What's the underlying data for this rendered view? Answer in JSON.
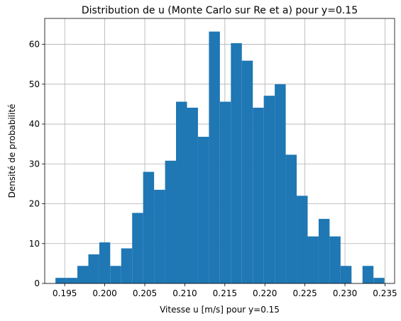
{
  "chart_data": {
    "type": "bar",
    "title": "Distribution de u (Monte Carlo sur Re et a) pour y=0.15",
    "xlabel": "Vitesse u [m/s] pour y=0.15",
    "ylabel": "Densité de probabilité",
    "xlim": [
      0.1925,
      0.2362
    ],
    "ylim": [
      0,
      66.5
    ],
    "grid": true,
    "bar_color": "#1f77b4",
    "grid_color": "#b0b0b0",
    "xticks": [
      0.195,
      0.2,
      0.205,
      0.21,
      0.215,
      0.22,
      0.225,
      0.23,
      0.235
    ],
    "xtick_labels": [
      "0.195",
      "0.200",
      "0.205",
      "0.210",
      "0.215",
      "0.220",
      "0.225",
      "0.230",
      "0.235"
    ],
    "yticks": [
      0,
      10,
      20,
      30,
      40,
      50,
      60
    ],
    "ytick_labels": [
      "0",
      "10",
      "20",
      "30",
      "40",
      "50",
      "60"
    ],
    "bins": [
      {
        "x0": 0.19384,
        "x1": 0.19521,
        "value": 1.4
      },
      {
        "x0": 0.19521,
        "x1": 0.19658,
        "value": 1.4
      },
      {
        "x0": 0.19658,
        "x1": 0.19795,
        "value": 4.4
      },
      {
        "x0": 0.19795,
        "x1": 0.19932,
        "value": 7.3
      },
      {
        "x0": 0.19932,
        "x1": 0.20068,
        "value": 10.3
      },
      {
        "x0": 0.20068,
        "x1": 0.20205,
        "value": 4.4
      },
      {
        "x0": 0.20205,
        "x1": 0.20342,
        "value": 8.8
      },
      {
        "x0": 0.20342,
        "x1": 0.20479,
        "value": 17.7
      },
      {
        "x0": 0.20479,
        "x1": 0.20616,
        "value": 28.0
      },
      {
        "x0": 0.20616,
        "x1": 0.20753,
        "value": 23.5
      },
      {
        "x0": 0.20753,
        "x1": 0.2089,
        "value": 30.8
      },
      {
        "x0": 0.2089,
        "x1": 0.21027,
        "value": 45.6
      },
      {
        "x0": 0.21027,
        "x1": 0.21164,
        "value": 44.1
      },
      {
        "x0": 0.21164,
        "x1": 0.21301,
        "value": 36.8
      },
      {
        "x0": 0.21301,
        "x1": 0.21438,
        "value": 63.2
      },
      {
        "x0": 0.21438,
        "x1": 0.21575,
        "value": 45.6
      },
      {
        "x0": 0.21575,
        "x1": 0.21712,
        "value": 60.3
      },
      {
        "x0": 0.21712,
        "x1": 0.21849,
        "value": 55.9
      },
      {
        "x0": 0.21849,
        "x1": 0.21986,
        "value": 44.1
      },
      {
        "x0": 0.21986,
        "x1": 0.22123,
        "value": 47.1
      },
      {
        "x0": 0.22123,
        "x1": 0.2226,
        "value": 50.0
      },
      {
        "x0": 0.2226,
        "x1": 0.22397,
        "value": 32.3
      },
      {
        "x0": 0.22397,
        "x1": 0.22534,
        "value": 22.0
      },
      {
        "x0": 0.22534,
        "x1": 0.22671,
        "value": 11.8
      },
      {
        "x0": 0.22671,
        "x1": 0.22808,
        "value": 16.2
      },
      {
        "x0": 0.22808,
        "x1": 0.22945,
        "value": 11.8
      },
      {
        "x0": 0.22945,
        "x1": 0.23082,
        "value": 4.4
      },
      {
        "x0": 0.23082,
        "x1": 0.23219,
        "value": 0
      },
      {
        "x0": 0.23219,
        "x1": 0.23356,
        "value": 4.4
      },
      {
        "x0": 0.23356,
        "x1": 0.23493,
        "value": 1.4
      }
    ]
  }
}
